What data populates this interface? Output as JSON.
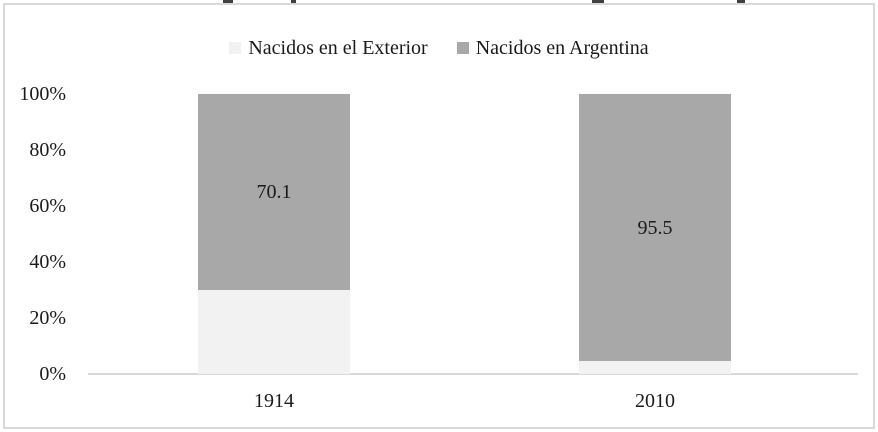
{
  "figure": {
    "background": "#ffffff",
    "border_color": "#d9d9d9",
    "axis_line_color": "#d9d9d9"
  },
  "legend": {
    "items": [
      {
        "label": "Nacidos en el Exterior",
        "swatch_color": "#f2f2f2"
      },
      {
        "label": "Nacidos en Argentina",
        "swatch_color": "#a8a8a8"
      }
    ]
  },
  "chart_data": {
    "type": "bar",
    "variant": "stacked-100-percent",
    "orientation": "vertical",
    "categories": [
      "1914",
      "2010"
    ],
    "series": [
      {
        "name": "Nacidos en el Exterior",
        "color": "#f2f2f2",
        "values": [
          29.9,
          4.5
        ]
      },
      {
        "name": "Nacidos en Argentina",
        "color": "#a8a8a8",
        "values": [
          70.1,
          95.5
        ]
      }
    ],
    "data_labels": [
      {
        "category": "1914",
        "series": "Nacidos en Argentina",
        "text": "70.1"
      },
      {
        "category": "2010",
        "series": "Nacidos en Argentina",
        "text": "95.5"
      }
    ],
    "yaxis": {
      "min": 0,
      "max": 100,
      "tick_step": 20,
      "tick_labels": [
        "0%",
        "20%",
        "40%",
        "60%",
        "80%",
        "100%"
      ]
    },
    "xlabel": "",
    "ylabel": "",
    "legend_position": "top",
    "grid": false
  }
}
